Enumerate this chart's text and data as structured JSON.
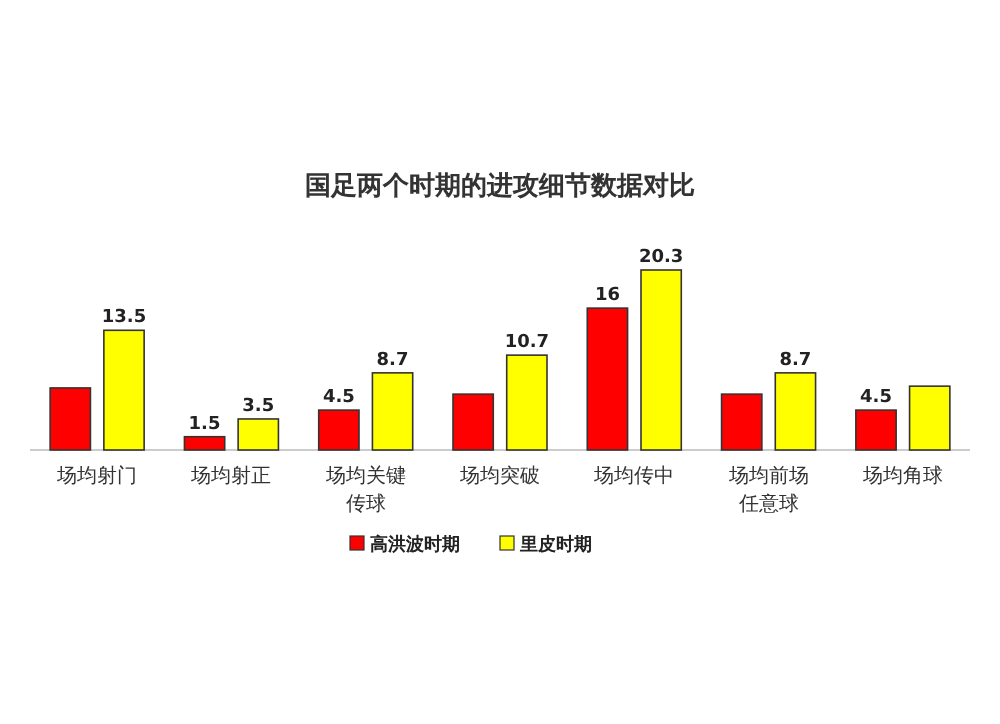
{
  "chart_data": {
    "type": "bar",
    "title": "国足两个时期的进攻细节数据对比",
    "categories": [
      "场均射门",
      "场均射正",
      "场均关键传球",
      "场均突破",
      "场均传中",
      "场均前场任意球",
      "场均角球"
    ],
    "series": [
      {
        "name": "高洪波时期",
        "color": "#ff0000",
        "values": [
          7.0,
          1.5,
          4.5,
          6.3,
          16,
          6.3,
          4.5
        ],
        "value_labels": [
          null,
          "1.5",
          "4.5",
          null,
          "16",
          null,
          "4.5"
        ]
      },
      {
        "name": "里皮时期",
        "color": "#ffff00",
        "values": [
          13.5,
          3.5,
          8.7,
          10.7,
          20.3,
          8.7,
          7.2
        ],
        "value_labels": [
          "13.5",
          "3.5",
          "8.7",
          "10.7",
          "20.3",
          "8.7",
          null
        ]
      }
    ],
    "legend": "bottom"
  }
}
